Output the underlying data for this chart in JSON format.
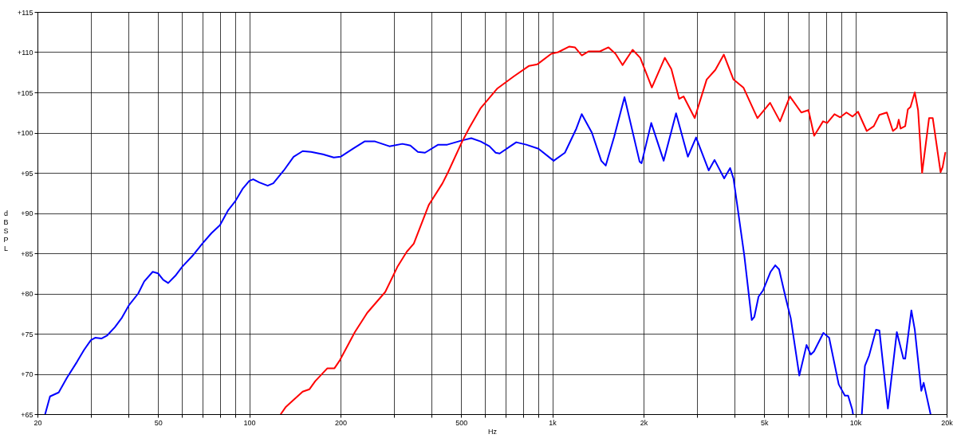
{
  "chart_data": {
    "type": "line",
    "xlabel": "Hz",
    "ylabel": "dB SPL",
    "log": "x",
    "grid": true,
    "marker": "none",
    "line_style": "solid",
    "xlim": [
      20,
      20000
    ],
    "ylim": [
      65,
      115
    ],
    "xticks": [
      20,
      {
        "value": 30,
        "label": null
      },
      {
        "value": 40,
        "label": null
      },
      50,
      {
        "value": 60,
        "label": null
      },
      {
        "value": 70,
        "label": null
      },
      {
        "value": 80,
        "label": null
      },
      {
        "value": 90,
        "label": null
      },
      100,
      200,
      {
        "value": 300,
        "label": null
      },
      {
        "value": 400,
        "label": null
      },
      500,
      {
        "value": 600,
        "label": null
      },
      {
        "value": 700,
        "label": null
      },
      {
        "value": 800,
        "label": null
      },
      {
        "value": 900,
        "label": null
      },
      {
        "value": 1000,
        "label": "1k"
      },
      {
        "value": 2000,
        "label": "2k"
      },
      {
        "value": 3000,
        "label": null
      },
      {
        "value": 4000,
        "label": null
      },
      {
        "value": 5000,
        "label": "5k"
      },
      {
        "value": 6000,
        "label": null
      },
      {
        "value": 7000,
        "label": null
      },
      {
        "value": 8000,
        "label": null
      },
      {
        "value": 9000,
        "label": null
      },
      {
        "value": 10000,
        "label": "10k"
      },
      {
        "value": 20000,
        "label": "20k"
      }
    ],
    "yticks": [
      {
        "value": 65,
        "label": "+65"
      },
      {
        "value": 70,
        "label": "+70"
      },
      {
        "value": 75,
        "label": "+75"
      },
      {
        "value": 80,
        "label": "+80"
      },
      {
        "value": 85,
        "label": "+85"
      },
      {
        "value": 90,
        "label": "+90"
      },
      {
        "value": 95,
        "label": "+95"
      },
      {
        "value": 100,
        "label": "+100"
      },
      {
        "value": 105,
        "label": "+105"
      },
      {
        "value": 110,
        "label": "+110"
      },
      {
        "value": 115,
        "label": "+115"
      }
    ],
    "series": [
      {
        "color": "#0000ff",
        "x": [
          21.2,
          22,
          23.5,
          25,
          27,
          28.5,
          30,
          31,
          32.5,
          34,
          36,
          38,
          40,
          43,
          45,
          48,
          50,
          52,
          54,
          57,
          60,
          65,
          70,
          75,
          80,
          85,
          90,
          95,
          100,
          103,
          108,
          115,
          120,
          130,
          140,
          150,
          160,
          175,
          190,
          200,
          220,
          240,
          260,
          290,
          320,
          340,
          360,
          380,
          420,
          450,
          500,
          540,
          580,
          620,
          650,
          670,
          720,
          760,
          820,
          900,
          1010,
          1100,
          1200,
          1250,
          1350,
          1450,
          1500,
          1600,
          1730,
          1940,
          1970,
          2120,
          2330,
          2560,
          2800,
          2980,
          3280,
          3430,
          3690,
          3860,
          3960,
          4300,
          4550,
          4640,
          4790,
          4960,
          5250,
          5440,
          5600,
          5900,
          6120,
          6530,
          6900,
          7120,
          7300,
          7840,
          8190,
          8810,
          9230,
          9460,
          9760,
          9820,
          10200,
          10500,
          10750,
          11100,
          11700,
          12000,
          12800,
          13700,
          14400,
          14600,
          15300,
          15700,
          16500,
          16800,
          17700
        ],
        "values": [
          65,
          67.2,
          67.7,
          69.5,
          71.5,
          73,
          74.2,
          74.5,
          74.4,
          74.8,
          75.8,
          77,
          78.5,
          80,
          81.5,
          82.7,
          82.5,
          81.7,
          81.3,
          82.2,
          83.3,
          84.7,
          86.2,
          87.5,
          88.5,
          90.3,
          91.5,
          93,
          94,
          94.2,
          93.8,
          93.4,
          93.7,
          95.3,
          97,
          97.7,
          97.6,
          97.3,
          96.9,
          97,
          98,
          98.9,
          98.9,
          98.3,
          98.6,
          98.4,
          97.6,
          97.5,
          98.5,
          98.5,
          99,
          99.3,
          98.9,
          98.3,
          97.5,
          97.4,
          98.2,
          98.8,
          98.5,
          98,
          96.5,
          97.5,
          100.5,
          102.3,
          100,
          96.5,
          95.9,
          99.5,
          104.4,
          96.4,
          96.2,
          101.2,
          96.5,
          102.4,
          97,
          99.4,
          95.3,
          96.6,
          94.3,
          95.6,
          94.3,
          84.7,
          76.7,
          77.1,
          79.6,
          80.4,
          82.7,
          83.5,
          83,
          79.3,
          76.9,
          69.8,
          73.6,
          72.4,
          72.8,
          75.1,
          74.5,
          68.7,
          67.3,
          67.3,
          65.6,
          65,
          null,
          65,
          71,
          72.3,
          75.5,
          75.4,
          65.7,
          75.2,
          71.9,
          71.9,
          77.9,
          75.5,
          67.9,
          68.9,
          65
        ]
      },
      {
        "color": "#ff0000",
        "x": [
          127,
          132,
          150,
          158,
          165,
          181,
          191,
          199,
          223,
          245,
          281,
          309,
          331,
          349,
          391,
          434,
          453,
          504,
          532,
          579,
          659,
          747,
          838,
          893,
          992,
          1045,
          1138,
          1187,
          1251,
          1319,
          1436,
          1532,
          1616,
          1705,
          1840,
          1950,
          2130,
          2350,
          2470,
          2620,
          2710,
          2950,
          3230,
          3450,
          3680,
          3960,
          4270,
          4750,
          5230,
          5640,
          6080,
          6630,
          7000,
          7310,
          7820,
          8070,
          8530,
          8910,
          9340,
          9790,
          10200,
          10900,
          11500,
          12000,
          12700,
          13300,
          13700,
          13900,
          14100,
          14600,
          14900,
          15200,
          15700,
          16100,
          16600,
          17500,
          18000,
          19100,
          19400,
          19800
        ],
        "values": [
          65,
          65.9,
          67.8,
          68.1,
          69.1,
          70.7,
          70.7,
          71.7,
          75.2,
          77.6,
          80.2,
          83.4,
          85.2,
          86.2,
          91,
          93.7,
          95.1,
          98.9,
          100.6,
          103,
          105.5,
          107,
          108.3,
          108.5,
          109.8,
          110,
          110.7,
          110.6,
          109.6,
          110.1,
          110.1,
          110.6,
          109.8,
          108.4,
          110.3,
          109.3,
          105.6,
          109.3,
          107.9,
          104.2,
          104.5,
          101.8,
          106.6,
          107.8,
          109.7,
          106.6,
          105.6,
          101.8,
          103.7,
          101.4,
          104.5,
          102.5,
          102.8,
          99.6,
          101.4,
          101.2,
          102.3,
          101.9,
          102.5,
          102,
          102.6,
          100.2,
          100.8,
          102.2,
          102.5,
          100.2,
          100.6,
          101.6,
          100.5,
          100.8,
          102.9,
          103.2,
          105,
          102.8,
          95,
          101.8,
          101.8,
          95.1,
          95.7,
          97.5
        ]
      }
    ]
  }
}
